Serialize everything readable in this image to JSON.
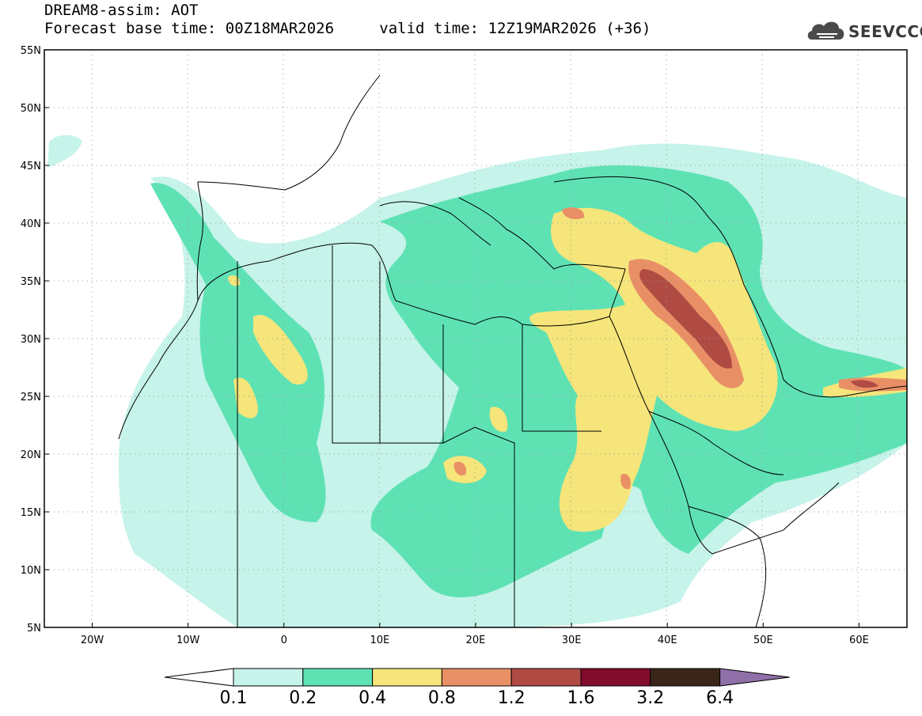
{
  "title": {
    "line1": "DREAM8-assim: AOT",
    "base_time_label": "Forecast base time: 00Z18MAR2026",
    "valid_time_label": "valid time: 12Z19MAR2026 (+36)"
  },
  "logo": {
    "text": "SEEVCCC",
    "icon": "cloud-icon"
  },
  "map": {
    "lon_range": [
      -25,
      65
    ],
    "lat_range": [
      5,
      55
    ],
    "x_ticks": [
      "20W",
      "10W",
      "0",
      "10E",
      "20E",
      "30E",
      "40E",
      "50E",
      "60E"
    ],
    "y_ticks": [
      "55N",
      "50N",
      "45N",
      "40N",
      "35N",
      "30N",
      "25N",
      "20N",
      "15N",
      "10N",
      "5N"
    ]
  },
  "colorbar": {
    "labels": [
      "0.1",
      "0.2",
      "0.4",
      "0.8",
      "1.2",
      "1.6",
      "3.2",
      "6.4"
    ],
    "colors": [
      "#c6f3ea",
      "#5ee2b4",
      "#f5e57a",
      "#e98f66",
      "#b04b43",
      "#820c2e",
      "#3a2619",
      "#9070a8"
    ]
  }
}
